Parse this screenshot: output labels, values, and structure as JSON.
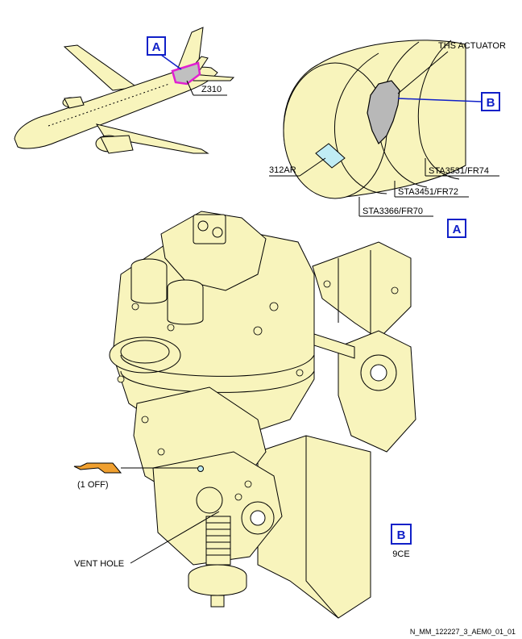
{
  "labels": {
    "zone": "Z310",
    "ths_actuator": "THS ACTUATOR",
    "access_panel": "312AR",
    "sta_74": "STA3531/FR74",
    "sta_72": "STA3451/FR72",
    "sta_70": "STA3366/FR70",
    "flag": "(1 OFF)",
    "vent_hole": "VENT HOLE",
    "zone_b": "9CE",
    "figure_id": "N_MM_122227_3_AEM0_01_01"
  },
  "callouts": {
    "a_aircraft": "A",
    "a_view": "A",
    "b_fuselage": "B",
    "b_view": "B"
  },
  "colors": {
    "part_fill": "#f8f4bc",
    "callout_blue": "#1020c8",
    "highlight_magenta": "#e020d0",
    "panel_cyan": "#c0ecf4",
    "flag_orange": "#f0a030",
    "actuator_gray": "#b8b8b8"
  },
  "icons": {
    "flag": "orange-tag-flag-icon"
  }
}
